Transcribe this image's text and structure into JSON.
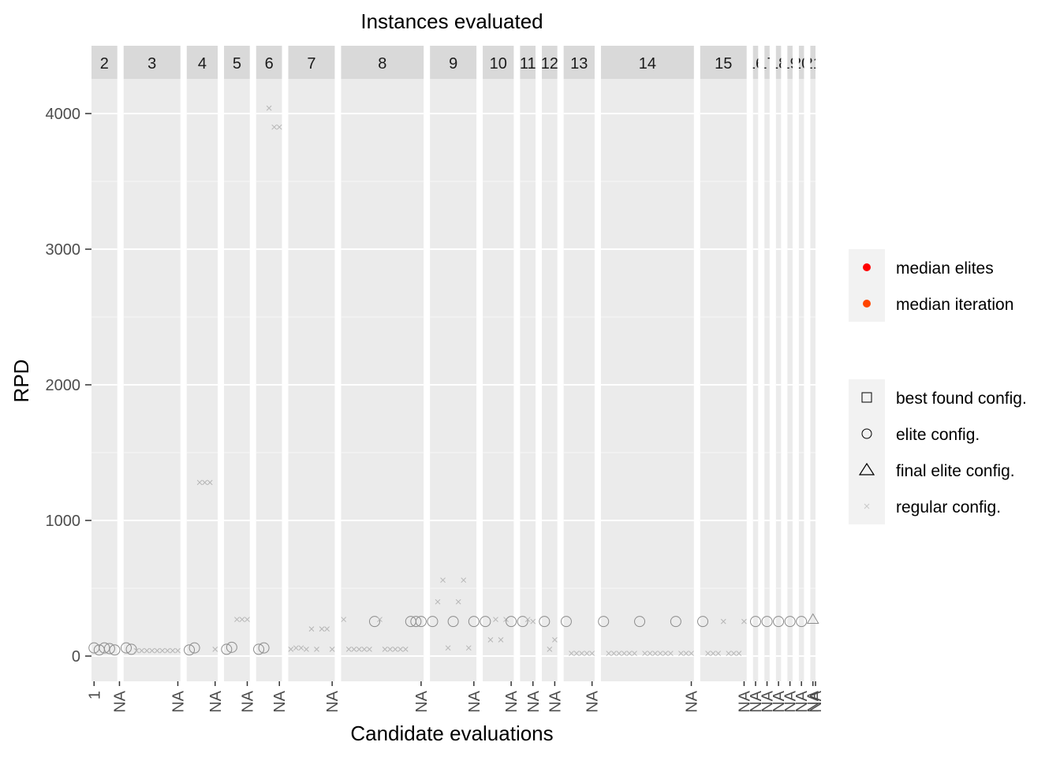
{
  "chart_data": {
    "type": "scatter",
    "title": "Instances evaluated",
    "xlabel": "Candidate evaluations",
    "ylabel": "RPD",
    "ylim": [
      -170,
      4400
    ],
    "yticks": [
      0,
      1000,
      2000,
      3000,
      4000
    ],
    "grid": true,
    "legend_position": "right",
    "legend_groups": [
      {
        "items": [
          {
            "label": "median elites",
            "shape": "dot",
            "color": "#ff0000"
          },
          {
            "label": "median iteration",
            "color": "#ff4500",
            "shape": "dot"
          }
        ]
      },
      {
        "items": [
          {
            "label": "best found config.",
            "shape": "square"
          },
          {
            "label": "elite config.",
            "shape": "circle"
          },
          {
            "label": "final elite config.",
            "shape": "triangle"
          },
          {
            "label": "regular config.",
            "shape": "cross"
          }
        ]
      }
    ],
    "x_tick_labels": [
      "1",
      "NA",
      "NA",
      "NA",
      "NA",
      "NA",
      "NA",
      "NA",
      "NA",
      "NA",
      "NA",
      "NA",
      "NA",
      "NA",
      "NA",
      "NA",
      "NA",
      "NA",
      "NA",
      "NA",
      "NA",
      "NA"
    ],
    "panels": [
      {
        "label": "2",
        "n": 5,
        "points": [
          {
            "x": 1,
            "y": 60,
            "shape": "circle"
          },
          {
            "x": 2,
            "y": 45,
            "shape": "circle"
          },
          {
            "x": 3,
            "y": 60,
            "shape": "circle"
          },
          {
            "x": 4,
            "y": 55,
            "shape": "circle"
          },
          {
            "x": 5,
            "y": 45,
            "shape": "circle"
          }
        ]
      },
      {
        "label": "3",
        "n": 11,
        "points": [
          {
            "x": 1,
            "y": 60,
            "shape": "circle"
          },
          {
            "x": 2,
            "y": 50,
            "shape": "circle"
          },
          {
            "x": 3,
            "y": 40,
            "shape": "cross"
          },
          {
            "x": 4,
            "y": 40,
            "shape": "cross"
          },
          {
            "x": 5,
            "y": 40,
            "shape": "cross"
          },
          {
            "x": 6,
            "y": 40,
            "shape": "cross"
          },
          {
            "x": 7,
            "y": 40,
            "shape": "cross"
          },
          {
            "x": 8,
            "y": 40,
            "shape": "cross"
          },
          {
            "x": 9,
            "y": 40,
            "shape": "cross"
          },
          {
            "x": 10,
            "y": 40,
            "shape": "cross"
          },
          {
            "x": 11,
            "y": 40,
            "shape": "cross"
          }
        ]
      },
      {
        "label": "4",
        "n": 6,
        "points": [
          {
            "x": 1,
            "y": 45,
            "shape": "circle"
          },
          {
            "x": 2,
            "y": 60,
            "shape": "circle"
          },
          {
            "x": 3,
            "y": 1280,
            "shape": "cross"
          },
          {
            "x": 4,
            "y": 1280,
            "shape": "cross"
          },
          {
            "x": 5,
            "y": 1280,
            "shape": "cross"
          },
          {
            "x": 6,
            "y": 50,
            "shape": "cross"
          }
        ]
      },
      {
        "label": "5",
        "n": 5,
        "points": [
          {
            "x": 1,
            "y": 50,
            "shape": "circle"
          },
          {
            "x": 2,
            "y": 65,
            "shape": "circle"
          },
          {
            "x": 3,
            "y": 270,
            "shape": "cross"
          },
          {
            "x": 4,
            "y": 270,
            "shape": "cross"
          },
          {
            "x": 5,
            "y": 270,
            "shape": "cross"
          }
        ]
      },
      {
        "label": "6",
        "n": 5,
        "points": [
          {
            "x": 1,
            "y": 50,
            "shape": "circle"
          },
          {
            "x": 2,
            "y": 60,
            "shape": "circle"
          },
          {
            "x": 3,
            "y": 4040,
            "shape": "cross"
          },
          {
            "x": 4,
            "y": 3900,
            "shape": "cross"
          },
          {
            "x": 5,
            "y": 3900,
            "shape": "cross"
          }
        ]
      },
      {
        "label": "7",
        "n": 9,
        "points": [
          {
            "x": 1,
            "y": 50,
            "shape": "cross"
          },
          {
            "x": 2,
            "y": 60,
            "shape": "cross"
          },
          {
            "x": 3,
            "y": 60,
            "shape": "cross"
          },
          {
            "x": 4,
            "y": 50,
            "shape": "cross"
          },
          {
            "x": 5,
            "y": 200,
            "shape": "cross"
          },
          {
            "x": 6,
            "y": 50,
            "shape": "cross"
          },
          {
            "x": 7,
            "y": 200,
            "shape": "cross"
          },
          {
            "x": 8,
            "y": 200,
            "shape": "cross"
          },
          {
            "x": 9,
            "y": 50,
            "shape": "cross"
          }
        ]
      },
      {
        "label": "8",
        "n": 16,
        "points": [
          {
            "x": 1,
            "y": 270,
            "shape": "cross"
          },
          {
            "x": 2,
            "y": 50,
            "shape": "cross"
          },
          {
            "x": 3,
            "y": 50,
            "shape": "cross"
          },
          {
            "x": 4,
            "y": 50,
            "shape": "cross"
          },
          {
            "x": 5,
            "y": 50,
            "shape": "cross"
          },
          {
            "x": 6,
            "y": 50,
            "shape": "cross"
          },
          {
            "x": 7,
            "y": 255,
            "shape": "circle"
          },
          {
            "x": 8,
            "y": 270,
            "shape": "cross"
          },
          {
            "x": 9,
            "y": 50,
            "shape": "cross"
          },
          {
            "x": 10,
            "y": 50,
            "shape": "cross"
          },
          {
            "x": 11,
            "y": 50,
            "shape": "cross"
          },
          {
            "x": 12,
            "y": 50,
            "shape": "cross"
          },
          {
            "x": 13,
            "y": 50,
            "shape": "cross"
          },
          {
            "x": 14,
            "y": 255,
            "shape": "circle"
          },
          {
            "x": 15,
            "y": 255,
            "shape": "circle"
          },
          {
            "x": 16,
            "y": 255,
            "shape": "circle"
          }
        ]
      },
      {
        "label": "9",
        "n": 9,
        "points": [
          {
            "x": 1,
            "y": 255,
            "shape": "circle"
          },
          {
            "x": 2,
            "y": 400,
            "shape": "cross"
          },
          {
            "x": 3,
            "y": 560,
            "shape": "cross"
          },
          {
            "x": 4,
            "y": 60,
            "shape": "cross"
          },
          {
            "x": 5,
            "y": 255,
            "shape": "circle"
          },
          {
            "x": 6,
            "y": 400,
            "shape": "cross"
          },
          {
            "x": 7,
            "y": 560,
            "shape": "cross"
          },
          {
            "x": 8,
            "y": 60,
            "shape": "cross"
          },
          {
            "x": 9,
            "y": 255,
            "shape": "circle"
          }
        ]
      },
      {
        "label": "10",
        "n": 6,
        "points": [
          {
            "x": 1,
            "y": 255,
            "shape": "circle"
          },
          {
            "x": 2,
            "y": 120,
            "shape": "cross"
          },
          {
            "x": 3,
            "y": 270,
            "shape": "cross"
          },
          {
            "x": 4,
            "y": 120,
            "shape": "cross"
          },
          {
            "x": 5,
            "y": 270,
            "shape": "cross"
          },
          {
            "x": 6,
            "y": 255,
            "shape": "circle"
          }
        ]
      },
      {
        "label": "11",
        "n": 3,
        "points": [
          {
            "x": 1,
            "y": 255,
            "shape": "circle"
          },
          {
            "x": 2,
            "y": 270,
            "shape": "cross"
          },
          {
            "x": 3,
            "y": 255,
            "shape": "cross"
          }
        ]
      },
      {
        "label": "12",
        "n": 3,
        "points": [
          {
            "x": 1,
            "y": 255,
            "shape": "circle"
          },
          {
            "x": 2,
            "y": 50,
            "shape": "cross"
          },
          {
            "x": 3,
            "y": 120,
            "shape": "cross"
          }
        ]
      },
      {
        "label": "13",
        "n": 6,
        "points": [
          {
            "x": 1,
            "y": 255,
            "shape": "circle"
          },
          {
            "x": 2,
            "y": 20,
            "shape": "cross"
          },
          {
            "x": 3,
            "y": 20,
            "shape": "cross"
          },
          {
            "x": 4,
            "y": 20,
            "shape": "cross"
          },
          {
            "x": 5,
            "y": 20,
            "shape": "cross"
          },
          {
            "x": 6,
            "y": 20,
            "shape": "cross"
          }
        ]
      },
      {
        "label": "14",
        "n": 18,
        "points": [
          {
            "x": 1,
            "y": 255,
            "shape": "circle"
          },
          {
            "x": 2,
            "y": 20,
            "shape": "cross"
          },
          {
            "x": 3,
            "y": 20,
            "shape": "cross"
          },
          {
            "x": 4,
            "y": 20,
            "shape": "cross"
          },
          {
            "x": 5,
            "y": 20,
            "shape": "cross"
          },
          {
            "x": 6,
            "y": 20,
            "shape": "cross"
          },
          {
            "x": 7,
            "y": 20,
            "shape": "cross"
          },
          {
            "x": 8,
            "y": 255,
            "shape": "circle"
          },
          {
            "x": 9,
            "y": 20,
            "shape": "cross"
          },
          {
            "x": 10,
            "y": 20,
            "shape": "cross"
          },
          {
            "x": 11,
            "y": 20,
            "shape": "cross"
          },
          {
            "x": 12,
            "y": 20,
            "shape": "cross"
          },
          {
            "x": 13,
            "y": 20,
            "shape": "cross"
          },
          {
            "x": 14,
            "y": 20,
            "shape": "cross"
          },
          {
            "x": 15,
            "y": 255,
            "shape": "circle"
          },
          {
            "x": 16,
            "y": 20,
            "shape": "cross"
          },
          {
            "x": 17,
            "y": 20,
            "shape": "cross"
          },
          {
            "x": 18,
            "y": 20,
            "shape": "cross"
          }
        ]
      },
      {
        "label": "15",
        "n": 9,
        "points": [
          {
            "x": 1,
            "y": 255,
            "shape": "circle"
          },
          {
            "x": 2,
            "y": 20,
            "shape": "cross"
          },
          {
            "x": 3,
            "y": 20,
            "shape": "cross"
          },
          {
            "x": 4,
            "y": 20,
            "shape": "cross"
          },
          {
            "x": 5,
            "y": 255,
            "shape": "cross"
          },
          {
            "x": 6,
            "y": 20,
            "shape": "cross"
          },
          {
            "x": 7,
            "y": 20,
            "shape": "cross"
          },
          {
            "x": 8,
            "y": 20,
            "shape": "cross"
          },
          {
            "x": 9,
            "y": 255,
            "shape": "cross"
          }
        ]
      },
      {
        "label": "16",
        "n": 1,
        "points": [
          {
            "x": 1,
            "y": 255,
            "shape": "circle"
          }
        ]
      },
      {
        "label": "17",
        "n": 1,
        "points": [
          {
            "x": 1,
            "y": 255,
            "shape": "circle"
          }
        ]
      },
      {
        "label": "18",
        "n": 1,
        "points": [
          {
            "x": 1,
            "y": 255,
            "shape": "circle"
          }
        ]
      },
      {
        "label": "19",
        "n": 1,
        "points": [
          {
            "x": 1,
            "y": 255,
            "shape": "circle"
          }
        ]
      },
      {
        "label": "20",
        "n": 1,
        "points": [
          {
            "x": 1,
            "y": 255,
            "shape": "circle"
          }
        ]
      },
      {
        "label": "21",
        "n": 1,
        "points": [
          {
            "x": 1,
            "y": 270,
            "shape": "triangle"
          }
        ]
      }
    ]
  }
}
